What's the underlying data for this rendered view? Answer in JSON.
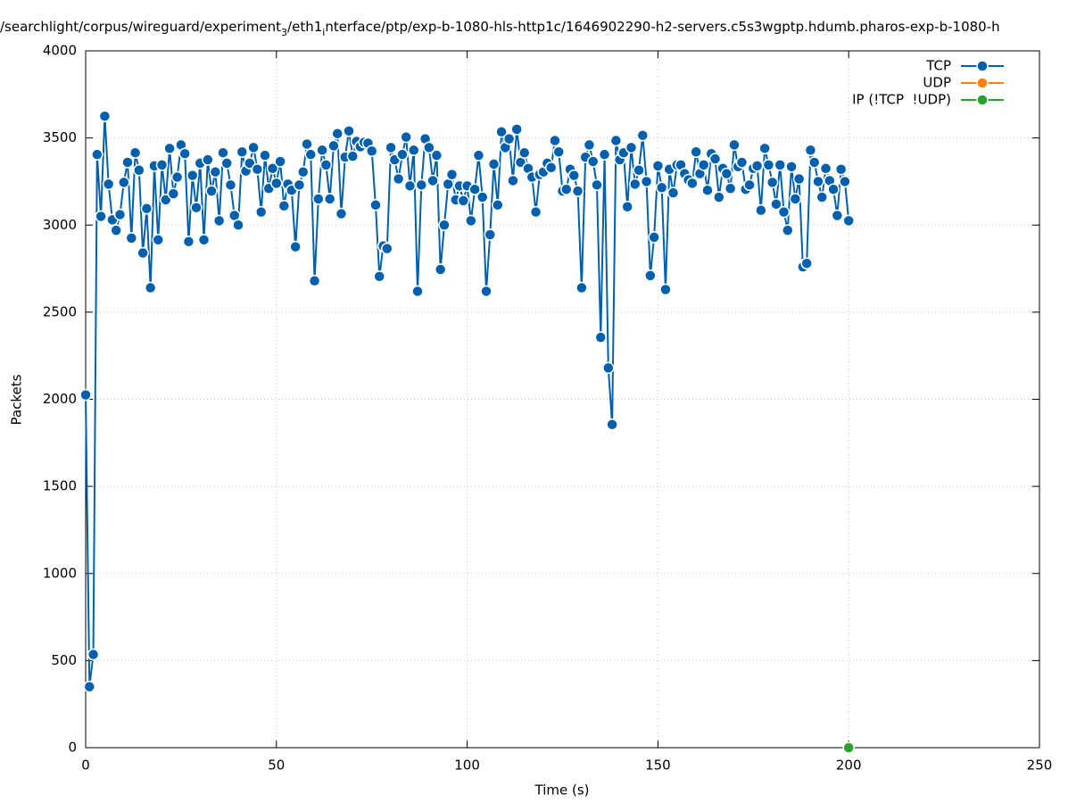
{
  "chart_data": {
    "type": "line",
    "title_parts": [
      {
        "text": "/searchlight/corpus/wireguard/experiment"
      },
      {
        "text": "3",
        "sub": true
      },
      {
        "text": "/eth1"
      },
      {
        "text": "i",
        "sub": true
      },
      {
        "text": "nterface/ptp/exp-b-1080-hls-http1c/1646902290-h2-servers.c5s3wgptp.hdumb.pharos-exp-b-1080-h"
      }
    ],
    "xlabel": "Time (s)",
    "ylabel": "Packets",
    "xlim": [
      0,
      250
    ],
    "xticks": [
      0,
      50,
      100,
      150,
      200,
      250
    ],
    "ylim": [
      0,
      4000
    ],
    "yticks": [
      0,
      500,
      1000,
      1500,
      2000,
      2500,
      3000,
      3500,
      4000
    ],
    "grid": true,
    "legend": "top-right",
    "series": [
      {
        "name": "TCP",
        "color": "#0060ad",
        "x": [
          0,
          1,
          2,
          3,
          4,
          5,
          6,
          7,
          8,
          9,
          10,
          11,
          12,
          13,
          14,
          15,
          16,
          17,
          18,
          19,
          20,
          21,
          22,
          23,
          24,
          25,
          26,
          27,
          28,
          29,
          30,
          31,
          32,
          33,
          34,
          35,
          36,
          37,
          38,
          39,
          40,
          41,
          42,
          43,
          44,
          45,
          46,
          47,
          48,
          49,
          50,
          51,
          52,
          53,
          54,
          55,
          56,
          57,
          58,
          59,
          60,
          61,
          62,
          63,
          64,
          65,
          66,
          67,
          68,
          69,
          70,
          71,
          72,
          73,
          74,
          75,
          76,
          77,
          78,
          79,
          80,
          81,
          82,
          83,
          84,
          85,
          86,
          87,
          88,
          89,
          90,
          91,
          92,
          93,
          94,
          95,
          96,
          97,
          98,
          99,
          100,
          101,
          102,
          103,
          104,
          105,
          106,
          107,
          108,
          109,
          110,
          111,
          112,
          113,
          114,
          115,
          116,
          117,
          118,
          119,
          120,
          121,
          122,
          123,
          124,
          125,
          126,
          127,
          128,
          129,
          130,
          131,
          132,
          133,
          134,
          135,
          136,
          137,
          138,
          139,
          140,
          141,
          142,
          143,
          144,
          145,
          146,
          147,
          148,
          149,
          150,
          151,
          152,
          153,
          154,
          155,
          156,
          157,
          158,
          159,
          160,
          161,
          162,
          163,
          164,
          165,
          166,
          167,
          168,
          169,
          170,
          171,
          172,
          173,
          174,
          175,
          176,
          177,
          178,
          179,
          180,
          181,
          182,
          183,
          184,
          185,
          186,
          187,
          188,
          189,
          190,
          191,
          192,
          193,
          194,
          195,
          196,
          197,
          198,
          199,
          200
        ],
        "values": [
          2025,
          350,
          535,
          3405,
          3050,
          3625,
          3235,
          3030,
          2970,
          3060,
          3245,
          3360,
          2925,
          3415,
          3315,
          2840,
          3095,
          2640,
          3340,
          2915,
          3345,
          3145,
          3440,
          3180,
          3275,
          3460,
          3410,
          2905,
          3285,
          3100,
          3355,
          2915,
          3375,
          3195,
          3305,
          3025,
          3415,
          3355,
          3230,
          3055,
          3000,
          3420,
          3310,
          3355,
          3445,
          3320,
          3075,
          3400,
          3210,
          3325,
          3240,
          3365,
          3110,
          3235,
          3200,
          2875,
          3230,
          3305,
          3465,
          3405,
          2680,
          3150,
          3430,
          3345,
          3150,
          3455,
          3525,
          3065,
          3390,
          3540,
          3395,
          3480,
          3450,
          3475,
          3470,
          3425,
          3115,
          2705,
          2880,
          2865,
          3445,
          3375,
          3265,
          3405,
          3505,
          3225,
          3430,
          2620,
          3230,
          3495,
          3445,
          3255,
          3400,
          2745,
          3000,
          3235,
          3290,
          3145,
          3225,
          3140,
          3225,
          3025,
          3205,
          3400,
          3160,
          2620,
          2945,
          3350,
          3115,
          3535,
          3445,
          3495,
          3255,
          3550,
          3360,
          3415,
          3325,
          3275,
          3075,
          3290,
          3305,
          3355,
          3330,
          3485,
          3420,
          3195,
          3205,
          3320,
          3285,
          3195,
          2640,
          3390,
          3460,
          3365,
          3230,
          2355,
          3405,
          2180,
          1855,
          3485,
          3375,
          3415,
          3105,
          3445,
          3235,
          3315,
          3515,
          3250,
          2710,
          2930,
          3340,
          3215,
          2630,
          3320,
          3185,
          3345,
          3345,
          3295,
          3260,
          3240,
          3420,
          3295,
          3345,
          3200,
          3410,
          3380,
          3160,
          3325,
          3295,
          3210,
          3460,
          3335,
          3360,
          3205,
          3230,
          3325,
          3340,
          3085,
          3440,
          3345,
          3245,
          3120,
          3345,
          3075,
          2970,
          3335,
          3150,
          3265,
          2760,
          2780,
          3430,
          3360,
          3250,
          3160,
          3325,
          3255,
          3205,
          3055,
          3320,
          3250,
          3025
        ]
      },
      {
        "name": "UDP",
        "color": "#ff7f0e",
        "x": [],
        "values": []
      },
      {
        "name": "IP (!TCP  !UDP)",
        "color": "#2ca02c",
        "x": [
          200
        ],
        "values": [
          0
        ]
      }
    ]
  }
}
